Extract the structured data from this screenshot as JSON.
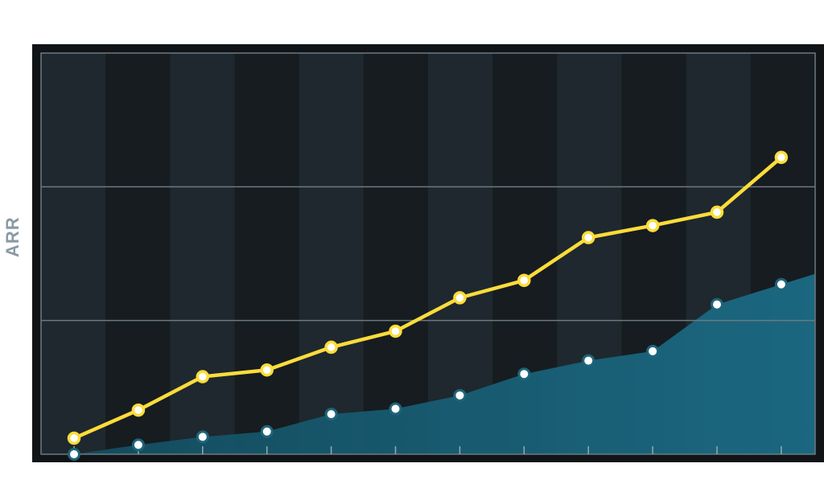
{
  "chart_data": {
    "type": "line",
    "title": "",
    "xlabel": "",
    "ylabel": "ARR",
    "x": [
      1,
      2,
      3,
      4,
      5,
      6,
      7,
      8,
      9,
      10,
      11,
      12
    ],
    "ylim": [
      0,
      3
    ],
    "grid": true,
    "series": [
      {
        "style": "line",
        "color": "#fddc3a",
        "values": [
          0.12,
          0.33,
          0.58,
          0.63,
          0.8,
          0.92,
          1.17,
          1.3,
          1.62,
          1.71,
          1.81,
          2.22
        ]
      },
      {
        "style": "area",
        "color": "#1b6b85",
        "values": [
          0.0,
          0.07,
          0.13,
          0.17,
          0.3,
          0.34,
          0.44,
          0.6,
          0.7,
          0.77,
          1.12,
          1.27
        ]
      }
    ],
    "colors": {
      "background": "#1a2228",
      "band_light": "#1e282e",
      "band_dark": "#161c20",
      "frame": "#111417",
      "gridline": "#6c7a82"
    }
  }
}
